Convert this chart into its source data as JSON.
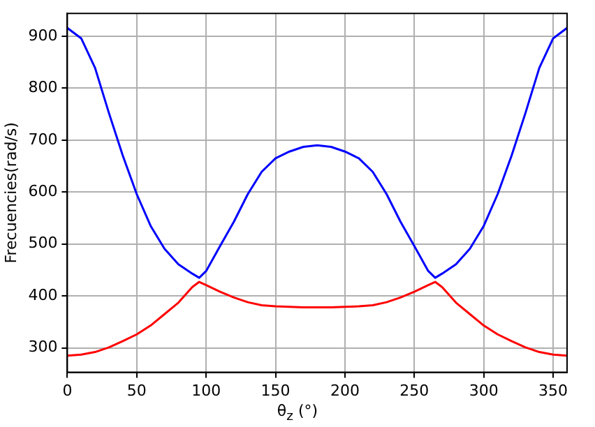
{
  "chart_data": {
    "type": "line",
    "xlabel": "θ$_{z}$ (°)",
    "ylabel": "Frecuencies(rad/s)",
    "x": [
      0,
      10,
      20,
      30,
      40,
      50,
      60,
      70,
      80,
      90,
      95,
      100,
      110,
      120,
      130,
      140,
      150,
      160,
      170,
      180,
      190,
      200,
      210,
      220,
      230,
      240,
      250,
      260,
      265,
      270,
      280,
      290,
      300,
      310,
      320,
      330,
      340,
      350,
      360
    ],
    "series": [
      {
        "color": "#0000ff",
        "values": [
          916,
          896,
          839,
          752,
          670,
          596,
          535,
          491,
          461,
          443,
          435,
          448,
          496,
          543,
          596,
          639,
          665,
          678,
          687,
          690,
          687,
          678,
          665,
          639,
          596,
          543,
          496,
          448,
          435,
          443,
          461,
          491,
          535,
          596,
          670,
          752,
          839,
          896,
          916
        ]
      },
      {
        "color": "#ff0000",
        "values": [
          285,
          287,
          292,
          301,
          313,
          326,
          343,
          365,
          387,
          417,
          427,
          421,
          408,
          397,
          388,
          382,
          380,
          379,
          378,
          378,
          378,
          379,
          380,
          382,
          388,
          397,
          408,
          421,
          427,
          417,
          387,
          365,
          343,
          326,
          313,
          301,
          292,
          287,
          285
        ]
      }
    ],
    "xlim": [
      0,
      360
    ],
    "ylim": [
      253,
      944
    ],
    "xticks": [
      0,
      50,
      100,
      150,
      200,
      250,
      300,
      350
    ],
    "yticks": [
      300,
      400,
      500,
      600,
      700,
      800,
      900
    ],
    "grid": true,
    "legend": false
  }
}
